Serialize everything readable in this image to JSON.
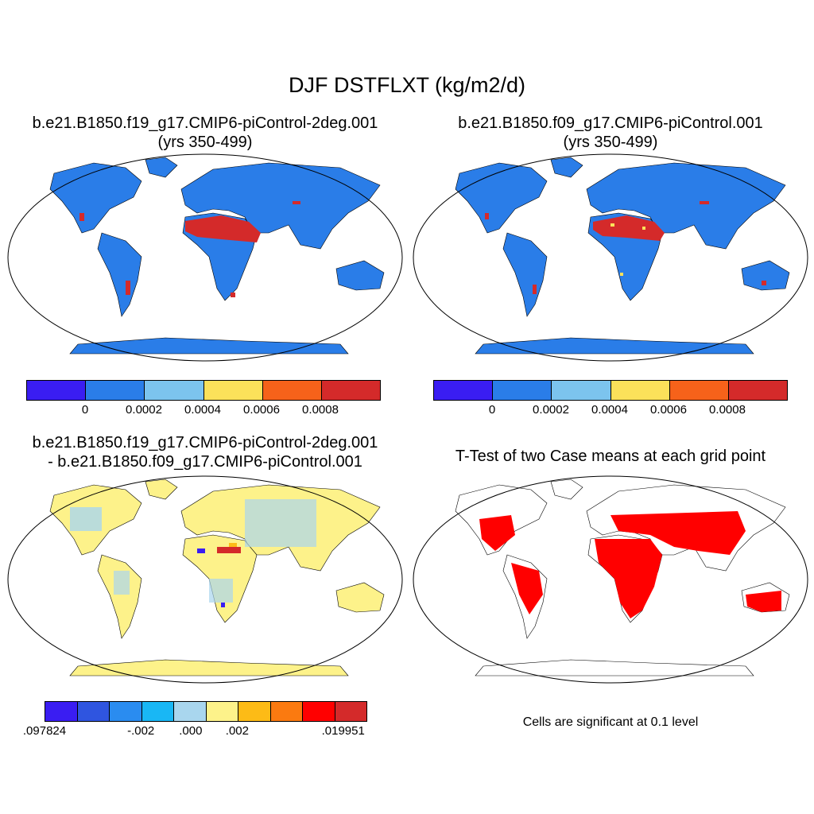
{
  "figure": {
    "title": "DJF DSTFLXT (kg/m2/d)",
    "panels": [
      {
        "line1": "b.e21.B1850.f19_g17.CMIP6-piControl-2deg.001",
        "line2": "(yrs 350-499)"
      },
      {
        "line1": "b.e21.B1850.f09_g17.CMIP6-piControl.001",
        "line2": "(yrs 350-499)"
      },
      {
        "line1": "b.e21.B1850.f19_g17.CMIP6-piControl-2deg.001",
        "line2": "- b.e21.B1850.f09_g17.CMIP6-piControl.001"
      },
      {
        "line1": "T-Test of two Case means at each grid point",
        "line2": ""
      }
    ],
    "colorbar_abs": {
      "colors": [
        "#3a1df2",
        "#2a7de8",
        "#7cc4ee",
        "#fbe15a",
        "#f6621a",
        "#d42a2a"
      ],
      "labels": [
        "0",
        "0.0002",
        "0.0004",
        "0.0006",
        "0.0008"
      ]
    },
    "colorbar_diff": {
      "colors": [
        "#3a1df2",
        "#2f55e0",
        "#2a8cf0",
        "#19b7f5",
        "#a9d6ee",
        "#fdf28a",
        "#fdbb16",
        "#fb7a10",
        "#ff0000",
        "#d42a2a"
      ],
      "labels": [
        ".097824",
        "-.002",
        ".000",
        ".002",
        ".019951"
      ]
    },
    "significance_note": "Cells are significant at 0.1 level",
    "colors": {
      "ocean_bg": "#ffffff",
      "land_low": "#2a7de8",
      "dust_high": "#d42a2a",
      "diff_land": "#fdf28a",
      "diff_light_blue": "#a9d6ee",
      "signif": "#ff0000"
    }
  }
}
